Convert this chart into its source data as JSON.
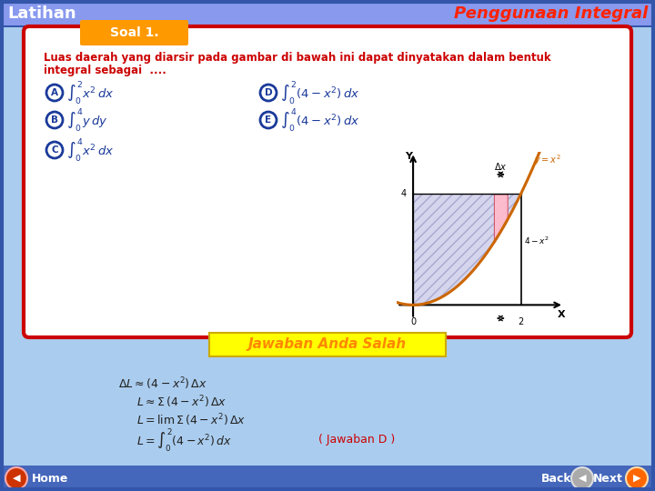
{
  "title_left": "Latihan",
  "title_right": "Penggunaan Integral",
  "title_bg": "#5577cc",
  "title_right_color": "#ff2200",
  "title_left_color": "#ffffff",
  "soal_label": "Soal 1.",
  "soal_bg": "#ff9900",
  "main_bg": "#aaccee",
  "card_bg": "#ffffff",
  "card_border": "#cc0000",
  "question_text": "Luas daerah yang diarsir pada gambar di bawah ini dapat dinyatakan dalam bentuk",
  "question_text2": "integral sebagai  ....",
  "question_color": "#cc0000",
  "option_circle_color": "#1a3a9a",
  "option_text_color": "#1a3a9a",
  "jawaban_text": "Jawaban Anda Salah",
  "jawaban_bg": "#ffff00",
  "jawaban_color": "#ff8800",
  "solution_color": "#222222",
  "home_color": "#cc3300",
  "next_color": "#ff6600",
  "bottom_bg": "#4466bb"
}
